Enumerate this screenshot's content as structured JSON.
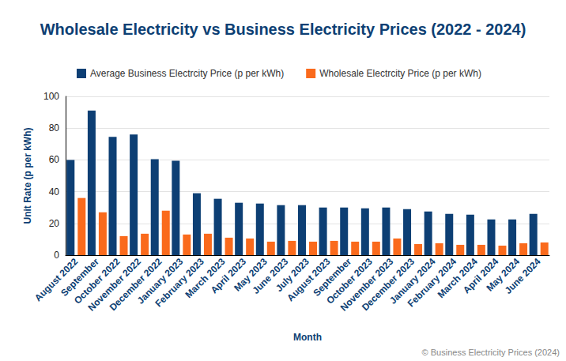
{
  "chart_data": {
    "type": "bar",
    "title": "Wholesale Electricity vs Business Electricity Prices (2022 - 2024)",
    "x_label": "Month",
    "y_label": "Unit Rate (p per kWh)",
    "categories": [
      "August 2022",
      "September",
      "October 2022",
      "November 2022",
      "December 2022",
      "January 2023",
      "February 2023",
      "March 2023",
      "April 2023",
      "May 2023",
      "June 2023",
      "July 2023",
      "August 2023",
      "September",
      "October 2023",
      "November 2023",
      "December 2023",
      "January 2024",
      "February 2024",
      "March 2024",
      "April 2024",
      "May 2024",
      "June 2024"
    ],
    "series": [
      {
        "name": "Average Business Electrcity Price (p per kWh)",
        "color": "#0d3f74",
        "values": [
          60,
          91,
          74.5,
          76,
          60.5,
          59.5,
          39,
          35.5,
          33,
          32.5,
          31.5,
          31.5,
          30,
          30,
          29.5,
          30,
          29,
          27.5,
          26,
          25.5,
          22.5,
          22.5,
          26
        ]
      },
      {
        "name": "Wholesale Electrcity Price (p per kWh)",
        "color": "#fa6a1c",
        "values": [
          36,
          27,
          12,
          13.5,
          28,
          13,
          13.5,
          11,
          10.5,
          8.5,
          9,
          8.5,
          9,
          8.5,
          8.5,
          10.5,
          7,
          7.5,
          6.5,
          6.5,
          6,
          7.5,
          8
        ]
      }
    ],
    "ylim": [
      0,
      100
    ],
    "yticks": [
      0,
      20,
      40,
      60,
      80,
      100
    ],
    "grid": true,
    "legend": "top-left",
    "annotations": [
      "© Business Electricity Prices (2024)"
    ]
  }
}
